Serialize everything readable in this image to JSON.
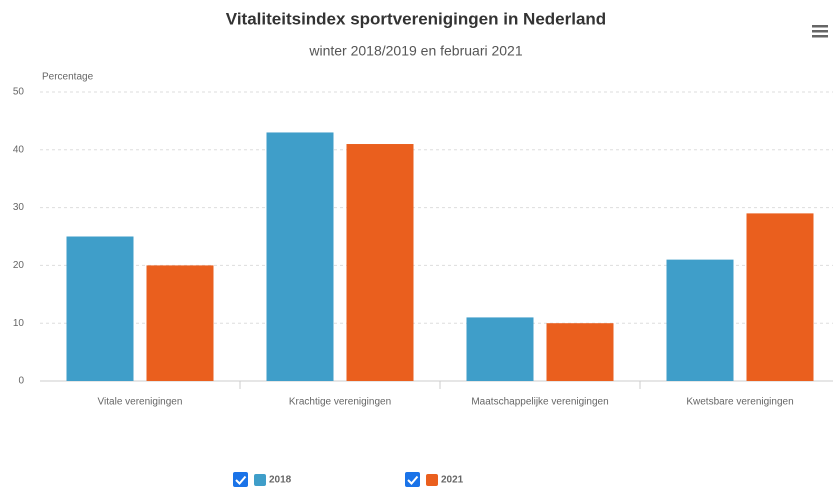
{
  "chart_data": {
    "type": "bar",
    "title": "Vitaliteitsindex sportverenigingen in Nederland",
    "subtitle": "winter 2018/2019 en februari 2021",
    "y_label": "Percentage",
    "categories": [
      "Vitale verenigingen",
      "Krachtige verenigingen",
      "Maatschappelijke verenigingen",
      "Kwetsbare verenigingen"
    ],
    "series": [
      {
        "name": "2018",
        "color": "#3f9ec9",
        "values": [
          25,
          43,
          11,
          21
        ]
      },
      {
        "name": "2021",
        "color": "#ea5f1e",
        "values": [
          20,
          41,
          10,
          29
        ]
      }
    ],
    "ylim": [
      0,
      50
    ],
    "yticks": [
      0,
      10,
      20,
      30,
      40,
      50
    ],
    "grid": true
  }
}
